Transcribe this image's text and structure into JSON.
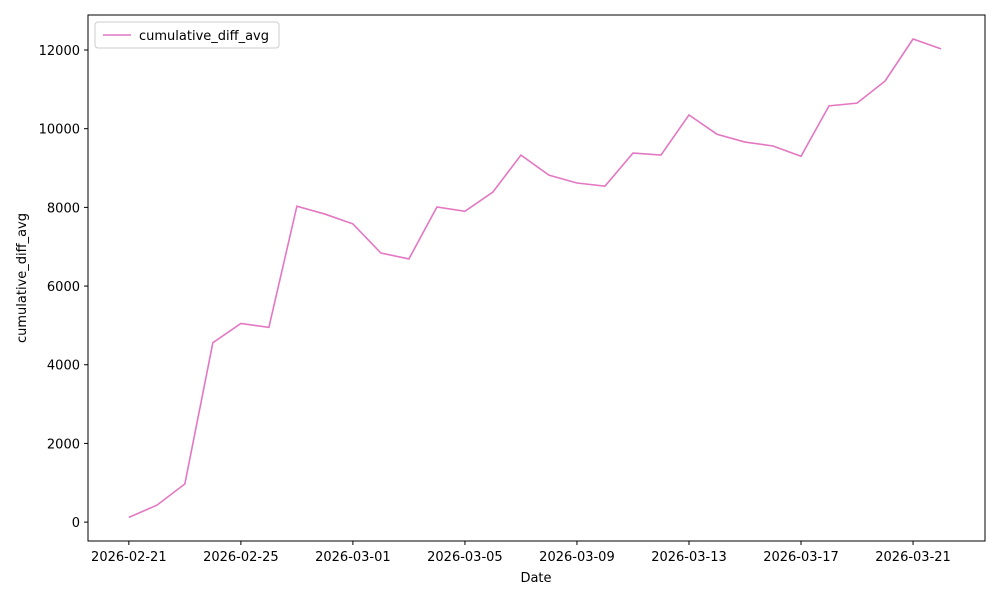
{
  "chart_data": {
    "type": "line",
    "x_label": "Date",
    "y_label": "cumulative_diff_avg",
    "x": [
      "2026-02-21",
      "2026-02-22",
      "2026-02-23",
      "2026-02-24",
      "2026-02-25",
      "2026-02-26",
      "2026-02-27",
      "2026-02-28",
      "2026-03-01",
      "2026-03-02",
      "2026-03-03",
      "2026-03-04",
      "2026-03-05",
      "2026-03-06",
      "2026-03-07",
      "2026-03-08",
      "2026-03-09",
      "2026-03-10",
      "2026-03-11",
      "2026-03-12",
      "2026-03-13",
      "2026-03-14",
      "2026-03-15",
      "2026-03-16",
      "2026-03-17",
      "2026-03-18",
      "2026-03-19",
      "2026-03-20",
      "2026-03-21",
      "2026-03-22"
    ],
    "series": [
      {
        "name": "cumulative_diff_avg",
        "color": "#e377c2",
        "values": [
          120,
          430,
          970,
          4560,
          5050,
          4950,
          8030,
          7830,
          7580,
          6840,
          6690,
          8010,
          7900,
          8390,
          9330,
          8820,
          8620,
          8540,
          9380,
          9330,
          10350,
          9860,
          9660,
          9560,
          9300,
          10580,
          10650,
          11210,
          12280,
          12030
        ]
      }
    ],
    "xlim": [
      "2026-02-19T13:00",
      "2026-03-23T13:40"
    ],
    "xticks": [
      "2026-02-21",
      "2026-02-25",
      "2026-03-01",
      "2026-03-05",
      "2026-03-09",
      "2026-03-13",
      "2026-03-17",
      "2026-03-21"
    ],
    "ylim": [
      -480,
      12890
    ],
    "yticks": [
      0,
      2000,
      4000,
      6000,
      8000,
      10000,
      12000
    ],
    "grid": false,
    "legend": "upper left"
  }
}
